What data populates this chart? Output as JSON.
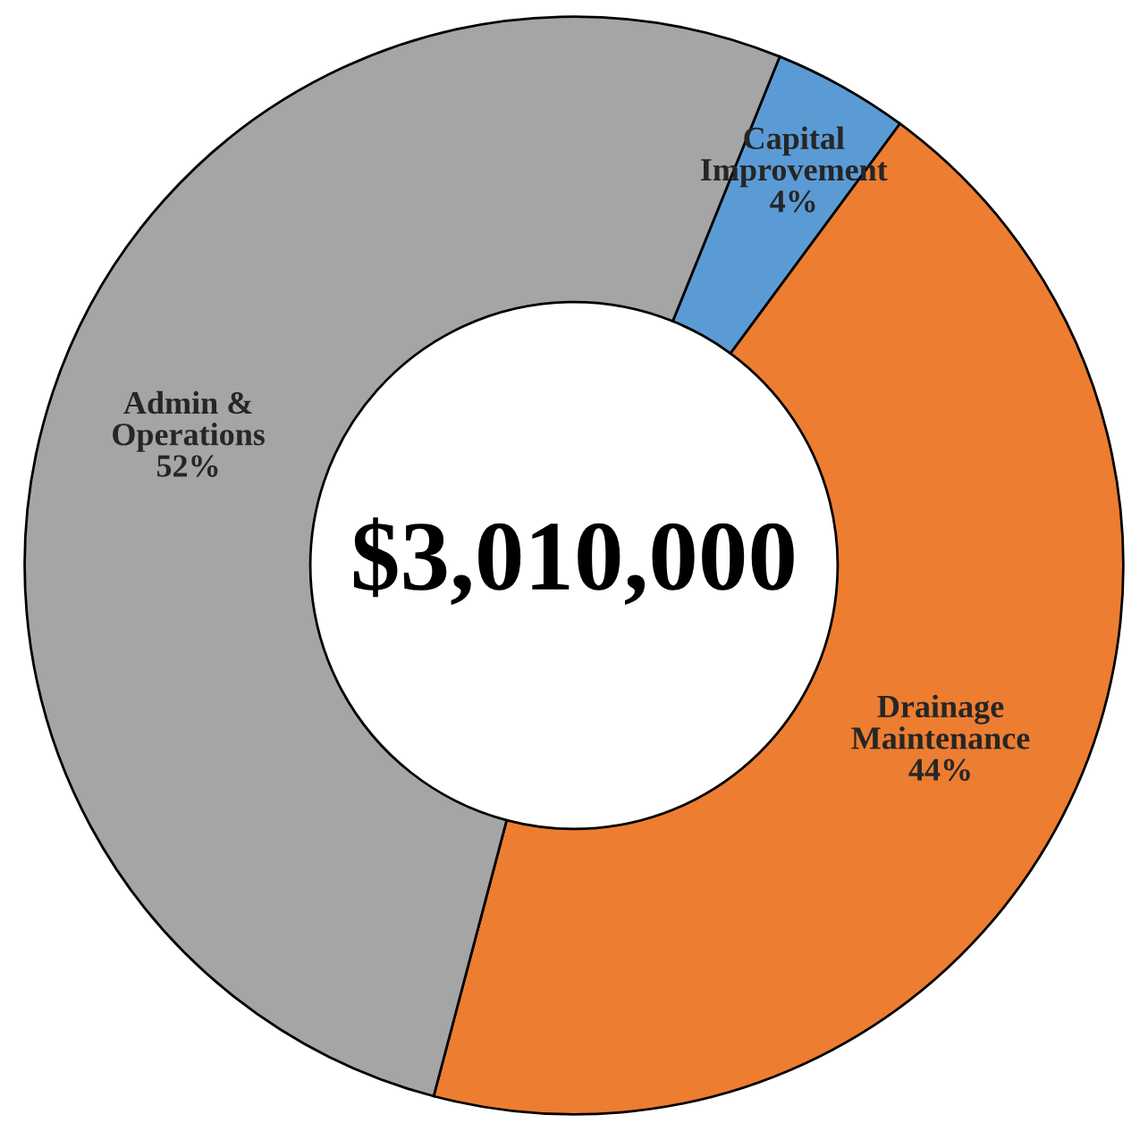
{
  "chart_data": {
    "type": "donut",
    "categories": [
      "Capital Improvement",
      "Drainage Maintenance",
      "Admin & Operations"
    ],
    "values": [
      4,
      44,
      52
    ],
    "value_labels": [
      "4%",
      "44%",
      "52%"
    ],
    "colors": [
      "#5b9bd5",
      "#ed7d31",
      "#a5a5a5"
    ],
    "annotations": [
      "$3,010,000"
    ]
  }
}
